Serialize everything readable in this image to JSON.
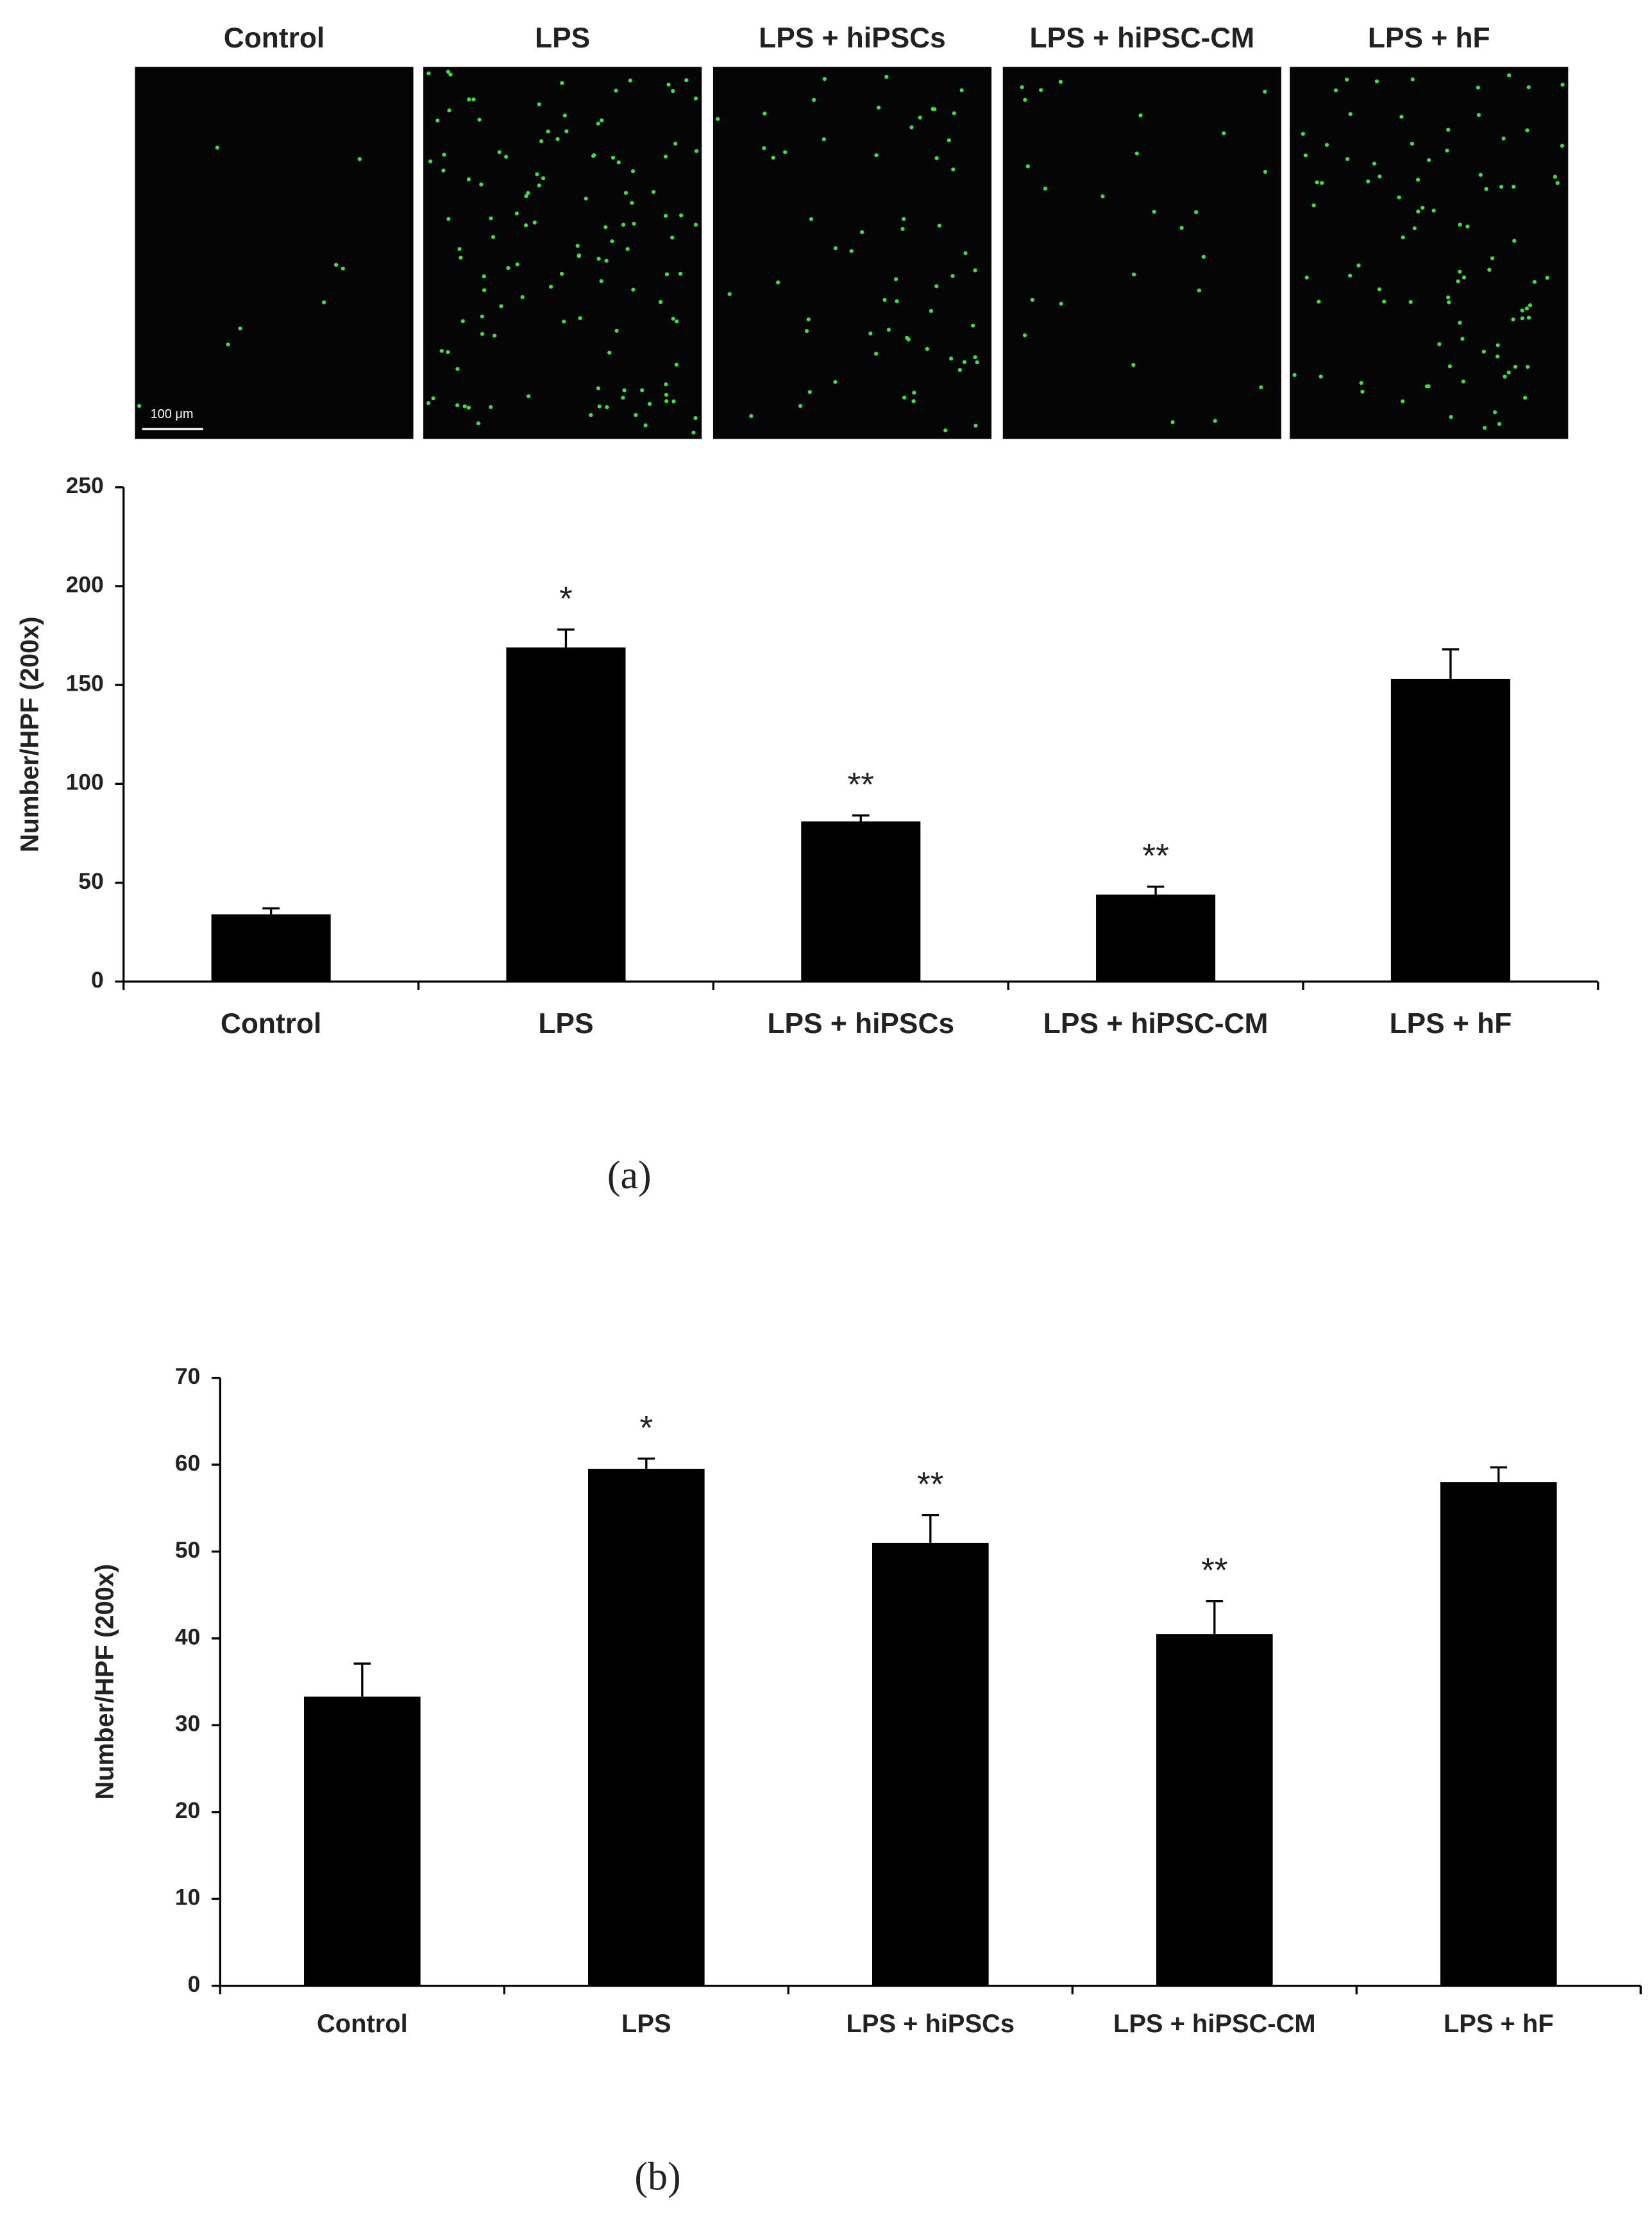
{
  "micrographs": {
    "labels": [
      "Control",
      "LPS",
      "LPS + hiPSCs",
      "LPS + hiPSC-CM",
      "LPS + hF"
    ],
    "scale_bar": "100 μm"
  },
  "captions": [
    "(a)",
    "(b)"
  ],
  "chart_data": [
    {
      "type": "bar",
      "ylabel": "Number/HPF (200x)",
      "categories": [
        "Control",
        "LPS",
        "LPS + hiPSCs",
        "LPS + hiPSC-CM",
        "LPS + hF"
      ],
      "values": [
        34,
        169,
        81,
        44,
        153
      ],
      "errors": [
        3,
        9,
        3,
        4,
        15
      ],
      "significance": [
        null,
        "*",
        "**",
        "**",
        null
      ],
      "color": "#000000",
      "ylim": [
        0,
        250
      ],
      "yticks": [
        0,
        50,
        100,
        150,
        200,
        250
      ],
      "grid": false
    },
    {
      "type": "bar",
      "ylabel": "Number/HPF (200x)",
      "categories": [
        "Control",
        "LPS",
        "LPS + hiPSCs",
        "LPS + hiPSC-CM",
        "LPS + hF"
      ],
      "values": [
        33.3,
        59.5,
        51,
        40.5,
        58
      ],
      "errors": [
        3.8,
        1.2,
        3.2,
        3.8,
        1.7
      ],
      "significance": [
        null,
        "*",
        "**",
        "**",
        null
      ],
      "color": "#000000",
      "ylim": [
        0,
        70
      ],
      "yticks": [
        0,
        10,
        20,
        30,
        40,
        50,
        60,
        70
      ],
      "grid": false
    }
  ]
}
